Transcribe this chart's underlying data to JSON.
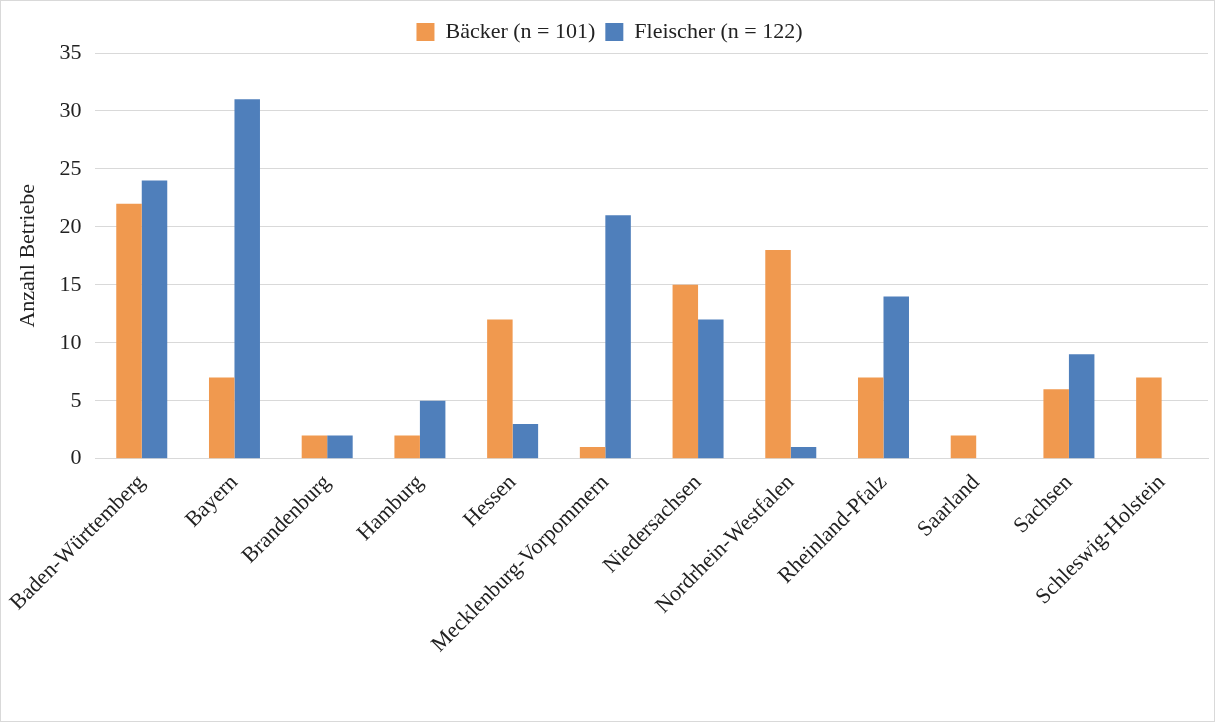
{
  "chart_data": {
    "type": "bar",
    "ylabel": "Anzahl Betriebe",
    "categories": [
      "Baden-Württemberg",
      "Bayern",
      "Brandenburg",
      "Hamburg",
      "Hessen",
      "Mecklenburg-Vorpommern",
      "Niedersachsen",
      "Nordrhein-Westfalen",
      "Rheinland-Pfalz",
      "Saarland",
      "Sachsen",
      "Schleswig-Holstein"
    ],
    "series": [
      {
        "name": "Bäcker (n = 101)",
        "color": "#f0994f",
        "values": [
          22,
          7,
          2,
          2,
          12,
          1,
          15,
          18,
          7,
          2,
          6,
          7
        ]
      },
      {
        "name": "Fleischer (n = 122)",
        "color": "#4f7fbb",
        "values": [
          24,
          31,
          2,
          5,
          3,
          21,
          12,
          1,
          14,
          0,
          9,
          0
        ]
      }
    ],
    "ylim": [
      0,
      35
    ],
    "yticks": [
      0,
      5,
      10,
      15,
      20,
      25,
      30,
      35
    ],
    "grid": "y",
    "legend": "top"
  }
}
